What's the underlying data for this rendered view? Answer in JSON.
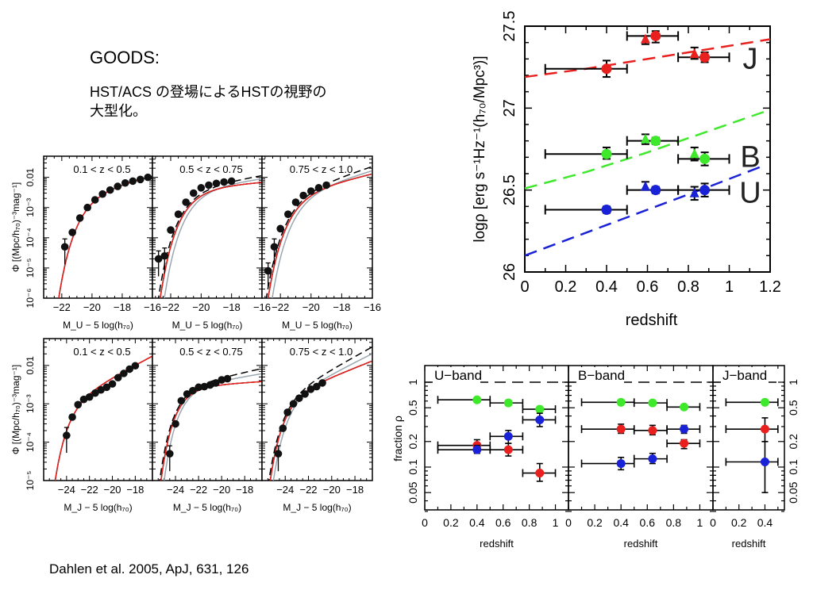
{
  "slide": {
    "title": "GOODS:",
    "subtitle_line1": "HST/ACS の登場によるHSTの視野の",
    "subtitle_line2": "大型化。",
    "citation": "Dahlen et al. 2005, ApJ, 631, 126"
  },
  "chart_data": [
    {
      "id": "luminosity-density",
      "type": "scatter",
      "title": "",
      "xlabel": "redshift",
      "ylabel": "logρ [erg s⁻¹Hz⁻¹(h₇₀/Mpc³)]",
      "xlim": [
        0,
        1.2
      ],
      "ylim": [
        26,
        27.5
      ],
      "xticks": [
        "0",
        "0.2",
        "0.4",
        "0.6",
        "0.8",
        "1",
        "1.2"
      ],
      "xtick_values": [
        0,
        0.2,
        0.4,
        0.6,
        0.8,
        1.0,
        1.2
      ],
      "yticks": [
        "26",
        "26.5",
        "27",
        "27.5"
      ],
      "ytick_values": [
        26,
        26.5,
        27,
        27.5
      ],
      "series": [
        {
          "name": "J",
          "color": "#e8201e",
          "circles": [
            {
              "x": 0.4,
              "y": 27.24,
              "xlo": 0.1,
              "xhi": 0.5,
              "ylo": 27.19,
              "yhi": 27.29
            },
            {
              "x": 0.64,
              "y": 27.44,
              "xlo": 0.5,
              "xhi": 0.75,
              "ylo": 27.4,
              "yhi": 27.47
            },
            {
              "x": 0.88,
              "y": 27.31,
              "xlo": 0.75,
              "xhi": 1.0,
              "ylo": 27.28,
              "yhi": 27.34
            }
          ],
          "triangles": [
            {
              "x": 0.59,
              "y": 27.42,
              "ylo": 27.39,
              "yhi": 27.44
            },
            {
              "x": 0.83,
              "y": 27.33,
              "ylo": 27.3,
              "yhi": 27.37
            }
          ],
          "model": [
            [
              0,
              27.19
            ],
            [
              0.3,
              27.24
            ],
            [
              0.6,
              27.3
            ],
            [
              0.9,
              27.36
            ],
            [
              1.2,
              27.42
            ]
          ]
        },
        {
          "name": "B",
          "color": "#3ee82a",
          "circles": [
            {
              "x": 0.4,
              "y": 26.72,
              "xlo": 0.1,
              "xhi": 0.5,
              "ylo": 26.69,
              "yhi": 26.76
            },
            {
              "x": 0.64,
              "y": 26.8,
              "xlo": 0.5,
              "xhi": 0.75,
              "ylo": 26.78,
              "yhi": 26.82
            },
            {
              "x": 0.88,
              "y": 26.69,
              "xlo": 0.75,
              "xhi": 1.0,
              "ylo": 26.65,
              "yhi": 26.73
            }
          ],
          "triangles": [
            {
              "x": 0.59,
              "y": 26.81,
              "ylo": 26.78,
              "yhi": 26.84
            },
            {
              "x": 0.83,
              "y": 26.72,
              "ylo": 26.68,
              "yhi": 26.76
            }
          ],
          "model": [
            [
              0,
              26.51
            ],
            [
              0.3,
              26.61
            ],
            [
              0.6,
              26.73
            ],
            [
              0.9,
              26.86
            ],
            [
              1.2,
              26.99
            ]
          ]
        },
        {
          "name": "U",
          "color": "#1a22d8",
          "circles": [
            {
              "x": 0.4,
              "y": 26.38,
              "xlo": 0.1,
              "xhi": 0.5,
              "ylo": 26.36,
              "yhi": 26.4
            },
            {
              "x": 0.64,
              "y": 26.5,
              "xlo": 0.5,
              "xhi": 0.75,
              "ylo": 26.48,
              "yhi": 26.52
            },
            {
              "x": 0.88,
              "y": 26.5,
              "xlo": 0.75,
              "xhi": 1.0,
              "ylo": 26.46,
              "yhi": 26.54
            }
          ],
          "triangles": [
            {
              "x": 0.59,
              "y": 26.52,
              "ylo": 26.5,
              "yhi": 26.55
            },
            {
              "x": 0.83,
              "y": 26.48,
              "ylo": 26.44,
              "yhi": 26.52
            }
          ],
          "model": [
            [
              0,
              26.1
            ],
            [
              0.3,
              26.24
            ],
            [
              0.6,
              26.38
            ],
            [
              0.9,
              26.52
            ],
            [
              1.15,
              26.64
            ]
          ]
        }
      ],
      "band_labels": [
        "J",
        "B",
        "U"
      ]
    },
    {
      "id": "fraction-rho",
      "type": "scatter",
      "ylabel": "fraction ρ",
      "yscale": "log",
      "ylim": [
        0.027,
        1.58
      ],
      "yticks": [
        "0.05",
        "0.1",
        "0.2",
        "0.5",
        "1"
      ],
      "ytick_values": [
        0.05,
        0.1,
        0.2,
        0.5,
        1
      ],
      "reference_line": 1,
      "panels": [
        {
          "label": "U−band",
          "xlabel": "redshift",
          "xlim": [
            0,
            1.1
          ],
          "xticks": [
            "0",
            "0.2",
            "0.4",
            "0.6",
            "0.8",
            "1"
          ],
          "points": [
            {
              "color": "#3ee82a",
              "x": 0.4,
              "y": 0.62,
              "xlo": 0.1,
              "xhi": 0.5
            },
            {
              "color": "#3ee82a",
              "x": 0.64,
              "y": 0.57,
              "xlo": 0.5,
              "xhi": 0.75
            },
            {
              "color": "#3ee82a",
              "x": 0.88,
              "y": 0.48,
              "xlo": 0.75,
              "xhi": 1.0
            },
            {
              "color": "#1a22d8",
              "x": 0.88,
              "y": 0.36,
              "xlo": 0.75,
              "xhi": 1.0,
              "ylo": 0.3,
              "yhi": 0.43
            },
            {
              "color": "#1a22d8",
              "x": 0.64,
              "y": 0.23,
              "xlo": 0.5,
              "xhi": 0.75,
              "ylo": 0.19,
              "yhi": 0.27
            },
            {
              "color": "#e8201e",
              "x": 0.4,
              "y": 0.18,
              "xlo": 0.1,
              "xhi": 0.5,
              "ylo": 0.16,
              "yhi": 0.21
            },
            {
              "color": "#1a22d8",
              "x": 0.4,
              "y": 0.16,
              "xlo": 0.1,
              "xhi": 0.5,
              "ylo": 0.145,
              "yhi": 0.18
            },
            {
              "color": "#e8201e",
              "x": 0.64,
              "y": 0.16,
              "xlo": 0.5,
              "xhi": 0.75,
              "ylo": 0.135,
              "yhi": 0.19
            },
            {
              "color": "#e8201e",
              "x": 0.88,
              "y": 0.085,
              "xlo": 0.75,
              "xhi": 1.0,
              "ylo": 0.068,
              "yhi": 0.11
            }
          ]
        },
        {
          "label": "B−band",
          "xlabel": "redshift",
          "xlim": [
            0,
            1.1
          ],
          "xticks": [
            "0",
            "0.2",
            "0.4",
            "0.6",
            "0.8",
            "1"
          ],
          "points": [
            {
              "color": "#3ee82a",
              "x": 0.4,
              "y": 0.58,
              "xlo": 0.1,
              "xhi": 0.5
            },
            {
              "color": "#3ee82a",
              "x": 0.64,
              "y": 0.57,
              "xlo": 0.5,
              "xhi": 0.75
            },
            {
              "color": "#3ee82a",
              "x": 0.88,
              "y": 0.51,
              "xlo": 0.75,
              "xhi": 1.0
            },
            {
              "color": "#e8201e",
              "x": 0.4,
              "y": 0.28,
              "xlo": 0.1,
              "xhi": 0.5,
              "ylo": 0.25,
              "yhi": 0.32
            },
            {
              "color": "#e8201e",
              "x": 0.64,
              "y": 0.27,
              "xlo": 0.5,
              "xhi": 0.75,
              "ylo": 0.24,
              "yhi": 0.31
            },
            {
              "color": "#1a22d8",
              "x": 0.88,
              "y": 0.28,
              "xlo": 0.75,
              "xhi": 1.0,
              "ylo": 0.25,
              "yhi": 0.31
            },
            {
              "color": "#e8201e",
              "x": 0.88,
              "y": 0.19,
              "xlo": 0.75,
              "xhi": 1.0,
              "ylo": 0.165,
              "yhi": 0.21
            },
            {
              "color": "#1a22d8",
              "x": 0.64,
              "y": 0.125,
              "xlo": 0.5,
              "xhi": 0.75,
              "ylo": 0.11,
              "yhi": 0.145
            },
            {
              "color": "#1a22d8",
              "x": 0.4,
              "y": 0.11,
              "xlo": 0.1,
              "xhi": 0.5,
              "ylo": 0.093,
              "yhi": 0.13
            }
          ]
        },
        {
          "label": "J−band",
          "xlabel": "redshift",
          "xlim": [
            0,
            0.55
          ],
          "xticks": [
            "0",
            "0.2",
            "0.4"
          ],
          "points": [
            {
              "color": "#3ee82a",
              "x": 0.4,
              "y": 0.58,
              "xlo": 0.1,
              "xhi": 0.5
            },
            {
              "color": "#e8201e",
              "x": 0.4,
              "y": 0.28,
              "xlo": 0.1,
              "xhi": 0.5,
              "ylo": 0.2,
              "yhi": 0.38
            },
            {
              "color": "#1a22d8",
              "x": 0.4,
              "y": 0.115,
              "xlo": 0.1,
              "xhi": 0.5,
              "ylo": 0.05,
              "yhi": 0.2
            }
          ]
        }
      ]
    },
    {
      "id": "luminosity-functions",
      "type": "scatter",
      "yscale": "log",
      "ylabel": "Φ [(Mpc/h₇₀)⁻³mag⁻¹]",
      "rows": [
        {
          "band": "U",
          "xlabel": "M_U − 5 log(h₇₀)",
          "xlim": [
            -23.2,
            -16
          ],
          "ylim": [
            1e-06,
            0.05
          ],
          "xticks": [
            "−22",
            "−20",
            "−18",
            "−16"
          ],
          "xtick_values": [
            -22,
            -20,
            -18,
            -16
          ],
          "yticks": [
            "10⁻⁶",
            "10⁻⁵",
            "10⁻⁴",
            "10⁻³",
            "0.01"
          ],
          "ytick_values": [
            1e-06,
            1e-05,
            0.0001,
            0.001,
            0.01
          ],
          "panels": [
            {
              "label": "0.1 < z < 0.5",
              "points": [
                [
                  -21.8,
                  5e-05
                ],
                [
                  -21.3,
                  0.00015
                ],
                [
                  -20.8,
                  0.00045
                ],
                [
                  -20.3,
                  0.001
                ],
                [
                  -19.8,
                  0.0018
                ],
                [
                  -19.3,
                  0.0028
                ],
                [
                  -18.8,
                  0.0038
                ],
                [
                  -18.3,
                  0.005
                ],
                [
                  -17.8,
                  0.0065
                ],
                [
                  -17.3,
                  0.0075
                ],
                [
                  -16.8,
                  0.0085
                ],
                [
                  -16.3,
                  0.01
                ]
              ],
              "schechter": {
                "Mstar": -20.0,
                "phistar": 0.004,
                "alpha": -1.3
              }
            },
            {
              "label": "0.5 < z < 0.75",
              "points": [
                [
                  -22.8,
                  2e-05
                ],
                [
                  -22.4,
                  2.5e-05
                ],
                [
                  -22.0,
                  0.00018
                ],
                [
                  -21.5,
                  0.0006
                ],
                [
                  -21.0,
                  0.0015
                ],
                [
                  -20.5,
                  0.003
                ],
                [
                  -20.0,
                  0.0045
                ],
                [
                  -19.5,
                  0.0055
                ],
                [
                  -19.0,
                  0.0063
                ],
                [
                  -18.5,
                  0.007
                ],
                [
                  -18.0,
                  0.0075
                ]
              ],
              "schechter": {
                "Mstar": -20.4,
                "phistar": 0.005,
                "alpha": -1.1
              }
            },
            {
              "label": "0.75 < z < 1.0",
              "points": [
                [
                  -22.8,
                  8e-06
                ],
                [
                  -22.4,
                  5e-05
                ],
                [
                  -22.0,
                  0.0002
                ],
                [
                  -21.5,
                  0.0006
                ],
                [
                  -21.0,
                  0.0015
                ],
                [
                  -20.5,
                  0.0025
                ],
                [
                  -20.0,
                  0.0035
                ],
                [
                  -19.5,
                  0.0045
                ],
                [
                  -19.0,
                  0.0055
                ]
              ],
              "schechter": {
                "Mstar": -20.6,
                "phistar": 0.004,
                "alpha": -1.3
              }
            }
          ]
        },
        {
          "band": "J",
          "xlabel": "M_J − 5 log(h₇₀)",
          "xlim": [
            -26,
            -16.5
          ],
          "ylim": [
            1e-05,
            0.05
          ],
          "xticks": [
            "−24",
            "−22",
            "−20",
            "−18"
          ],
          "xtick_values": [
            -24,
            -22,
            -20,
            -18
          ],
          "yticks": [
            "10⁻⁵",
            "10⁻⁴",
            "10⁻³",
            "0.01"
          ],
          "ytick_values": [
            1e-05,
            0.0001,
            0.001,
            0.01
          ],
          "panels": [
            {
              "label": "0.1 < z < 0.5",
              "points": [
                [
                  -24.0,
                  0.00015
                ],
                [
                  -23.5,
                  0.00045
                ],
                [
                  -23.0,
                  0.00095
                ],
                [
                  -22.5,
                  0.0013
                ],
                [
                  -22.0,
                  0.0015
                ],
                [
                  -21.5,
                  0.0019
                ],
                [
                  -21.0,
                  0.0023
                ],
                [
                  -20.5,
                  0.0027
                ],
                [
                  -20.0,
                  0.0033
                ],
                [
                  -19.5,
                  0.0048
                ],
                [
                  -19.0,
                  0.0062
                ],
                [
                  -18.5,
                  0.008
                ],
                [
                  -18.0,
                  0.0098
                ]
              ],
              "schechter": {
                "Mstar": -23.4,
                "phistar": 0.0015,
                "alpha": -1.4
              }
            },
            {
              "label": "0.5 < z < 0.75",
              "points": [
                [
                  -24.5,
                  5e-05
                ],
                [
                  -24.0,
                  0.0003
                ],
                [
                  -23.5,
                  0.0012
                ],
                [
                  -23.0,
                  0.0018
                ],
                [
                  -22.5,
                  0.0022
                ],
                [
                  -22.0,
                  0.0027
                ],
                [
                  -21.5,
                  0.0028
                ],
                [
                  -21.0,
                  0.0031
                ],
                [
                  -20.5,
                  0.0035
                ],
                [
                  -20.0,
                  0.0042
                ],
                [
                  -19.5,
                  0.0045
                ]
              ],
              "schechter": {
                "Mstar": -23.4,
                "phistar": 0.003,
                "alpha": -1.05
              }
            },
            {
              "label": "0.75 < z < 1.0",
              "points": [
                [
                  -24.6,
                  5e-05
                ],
                [
                  -24.2,
                  0.00023
                ],
                [
                  -23.8,
                  0.0006
                ],
                [
                  -23.3,
                  0.001
                ],
                [
                  -22.8,
                  0.0014
                ],
                [
                  -22.3,
                  0.0018
                ],
                [
                  -21.8,
                  0.0024
                ],
                [
                  -21.3,
                  0.0028
                ],
                [
                  -20.8,
                  0.0035
                ]
              ],
              "schechter": {
                "Mstar": -23.6,
                "phistar": 0.002,
                "alpha": -1.3
              }
            }
          ]
        }
      ]
    }
  ],
  "colors": {
    "red": "#e8201e",
    "green": "#3ee82a",
    "blue": "#1a22d8",
    "grey": "#9aa7b0"
  }
}
